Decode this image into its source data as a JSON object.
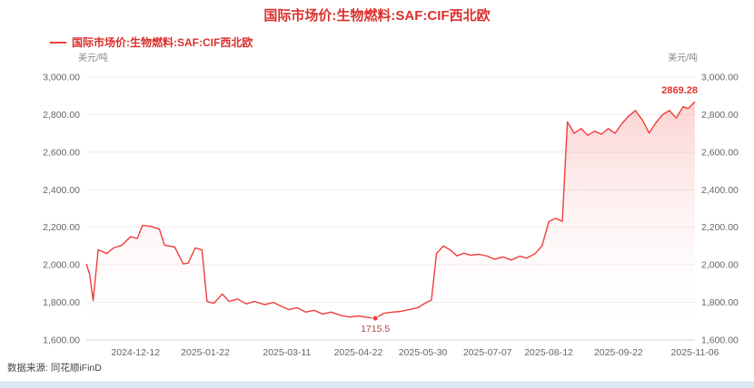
{
  "title": "国际市场价:生物燃料:SAF:CIF西北欧",
  "legend": {
    "label": "国际市场价:生物燃料:SAF:CIF西北欧"
  },
  "axis": {
    "unit_left": "美元/吨",
    "unit_right": "美元/吨"
  },
  "source": "数据来源: 同花顺iFinD",
  "colors": {
    "accent_line": "#ee3f3c",
    "title_red": "#d9302c",
    "min_label": "#a94b42",
    "grid": "#ececec",
    "grid_base": "#d6d6d6",
    "axis_text": "#666666"
  },
  "chart_data": {
    "type": "area",
    "title": "国际市场价:生物燃料:SAF:CIF西北欧",
    "ylabel": "美元/吨",
    "ylim": [
      1600,
      3000
    ],
    "grid": true,
    "legend_position": "top-left",
    "y_ticks": [
      {
        "v": 1600,
        "label": "1,600.00"
      },
      {
        "v": 1800,
        "label": "1,800.00"
      },
      {
        "v": 2000,
        "label": "2,000.00"
      },
      {
        "v": 2200,
        "label": "2,200.00"
      },
      {
        "v": 2400,
        "label": "2,400.00"
      },
      {
        "v": 2600,
        "label": "2,600.00"
      },
      {
        "v": 2800,
        "label": "2,800.00"
      },
      {
        "v": 3000,
        "label": "3,000.00"
      }
    ],
    "x_domain_days": [
      0,
      358
    ],
    "x_ticks": [
      {
        "day": 29,
        "label": "2024-12-12"
      },
      {
        "day": 70,
        "label": "2025-01-22"
      },
      {
        "day": 118,
        "label": "2025-03-11"
      },
      {
        "day": 160,
        "label": "2025-04-22"
      },
      {
        "day": 198,
        "label": "2025-05-30"
      },
      {
        "day": 236,
        "label": "2025-07-07"
      },
      {
        "day": 272,
        "label": "2025-08-12"
      },
      {
        "day": 313,
        "label": "2025-09-22"
      },
      {
        "day": 358,
        "label": "2025-11-06"
      }
    ],
    "points": [
      [
        0,
        2005
      ],
      [
        2,
        1950
      ],
      [
        4,
        1810
      ],
      [
        7,
        2080
      ],
      [
        12,
        2060
      ],
      [
        16,
        2090
      ],
      [
        21,
        2105
      ],
      [
        26,
        2150
      ],
      [
        30,
        2140
      ],
      [
        33,
        2210
      ],
      [
        38,
        2205
      ],
      [
        43,
        2190
      ],
      [
        46,
        2105
      ],
      [
        52,
        2095
      ],
      [
        57,
        2005
      ],
      [
        60,
        2010
      ],
      [
        64,
        2090
      ],
      [
        68,
        2080
      ],
      [
        71,
        1805
      ],
      [
        75,
        1795
      ],
      [
        80,
        1845
      ],
      [
        84,
        1805
      ],
      [
        89,
        1818
      ],
      [
        94,
        1792
      ],
      [
        99,
        1805
      ],
      [
        105,
        1788
      ],
      [
        110,
        1800
      ],
      [
        115,
        1778
      ],
      [
        119,
        1762
      ],
      [
        124,
        1772
      ],
      [
        129,
        1748
      ],
      [
        134,
        1758
      ],
      [
        139,
        1738
      ],
      [
        144,
        1748
      ],
      [
        150,
        1730
      ],
      [
        155,
        1722
      ],
      [
        160,
        1728
      ],
      [
        165,
        1720
      ],
      [
        170,
        1715.5
      ],
      [
        175,
        1742
      ],
      [
        180,
        1748
      ],
      [
        185,
        1752
      ],
      [
        190,
        1762
      ],
      [
        195,
        1772
      ],
      [
        200,
        1800
      ],
      [
        203,
        1812
      ],
      [
        206,
        2060
      ],
      [
        210,
        2100
      ],
      [
        214,
        2080
      ],
      [
        218,
        2048
      ],
      [
        222,
        2062
      ],
      [
        226,
        2052
      ],
      [
        231,
        2056
      ],
      [
        236,
        2046
      ],
      [
        240,
        2030
      ],
      [
        245,
        2042
      ],
      [
        250,
        2026
      ],
      [
        255,
        2046
      ],
      [
        259,
        2036
      ],
      [
        264,
        2060
      ],
      [
        268,
        2100
      ],
      [
        272,
        2230
      ],
      [
        276,
        2248
      ],
      [
        280,
        2232
      ],
      [
        283,
        2762
      ],
      [
        287,
        2700
      ],
      [
        291,
        2726
      ],
      [
        295,
        2690
      ],
      [
        299,
        2712
      ],
      [
        303,
        2696
      ],
      [
        307,
        2726
      ],
      [
        311,
        2700
      ],
      [
        315,
        2752
      ],
      [
        319,
        2792
      ],
      [
        323,
        2822
      ],
      [
        327,
        2772
      ],
      [
        331,
        2702
      ],
      [
        335,
        2756
      ],
      [
        339,
        2800
      ],
      [
        343,
        2822
      ],
      [
        347,
        2782
      ],
      [
        351,
        2842
      ],
      [
        354,
        2832
      ],
      [
        358,
        2869.28
      ]
    ],
    "annotations": {
      "min": {
        "day": 170,
        "value": 1715.5,
        "label": "1715.5"
      },
      "last": {
        "day": 358,
        "value": 2869.28,
        "label": "2869.28"
      }
    }
  }
}
